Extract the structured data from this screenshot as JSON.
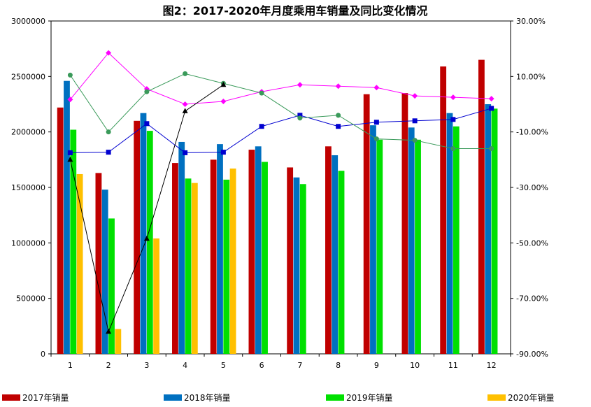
{
  "chart_data": {
    "type": "bar",
    "title": "图2：2017-2020年月度乘用车销量及同比变化情况",
    "categories": [
      "1",
      "2",
      "3",
      "4",
      "5",
      "6",
      "7",
      "8",
      "9",
      "10",
      "11",
      "12"
    ],
    "y_left": {
      "min": 0,
      "max": 3000000,
      "ticks": [
        "0",
        "500000",
        "1000000",
        "1500000",
        "2000000",
        "2500000",
        "3000000"
      ]
    },
    "y_right": {
      "min": -90,
      "max": 30,
      "ticks": [
        "-90.00%",
        "-70.00%",
        "-50.00%",
        "-30.00%",
        "-10.00%",
        "10.00%",
        "30.00%"
      ]
    },
    "bar_series": [
      {
        "name": "2017年销量",
        "color": "#c00000",
        "values": [
          2220000,
          1630000,
          2100000,
          1720000,
          1750000,
          1840000,
          1680000,
          1870000,
          2340000,
          2350000,
          2590000,
          2650000
        ]
      },
      {
        "name": "2018年销量",
        "color": "#0070c0",
        "values": [
          2460000,
          1480000,
          2170000,
          1910000,
          1890000,
          1870000,
          1590000,
          1790000,
          2060000,
          2040000,
          2170000,
          2250000
        ]
      },
      {
        "name": "2019年销量",
        "color": "#00e000",
        "values": [
          2020000,
          1220000,
          2010000,
          1580000,
          1570000,
          1730000,
          1530000,
          1650000,
          1930000,
          1930000,
          2050000,
          2210000
        ]
      },
      {
        "name": "2020年销量",
        "color": "#ffc000",
        "values": [
          1620000,
          224000,
          1040000,
          1540000,
          1670000,
          null,
          null,
          null,
          null,
          null,
          null,
          null
        ]
      }
    ],
    "line_series": [
      {
        "color": "#ff00ff",
        "marker": "diamond",
        "values": [
          1.7,
          18.5,
          5.5,
          0.0,
          1.0,
          4.5,
          7.0,
          6.5,
          6.0,
          3.0,
          2.5,
          2.0
        ]
      },
      {
        "color": "#0000d0",
        "marker": "square",
        "values": [
          -17.5,
          -17.3,
          -7.0,
          -17.5,
          -17.3,
          -8.0,
          -4.0,
          -8.0,
          -6.5,
          -6.0,
          -5.5,
          -1.5
        ]
      },
      {
        "color": "#3a9a5a",
        "marker": "circle",
        "values": [
          10.5,
          -10.0,
          4.5,
          11.0,
          7.5,
          4.0,
          -5.0,
          -4.0,
          -12.5,
          -13.0,
          -16.0,
          -16.0
        ]
      },
      {
        "color": "#000000",
        "marker": "triangle",
        "values": [
          -20.0,
          -82.0,
          -48.5,
          -2.5,
          7.0,
          null,
          null,
          null,
          null,
          null,
          null,
          null
        ]
      }
    ],
    "legend": "bottom",
    "grid": false
  }
}
